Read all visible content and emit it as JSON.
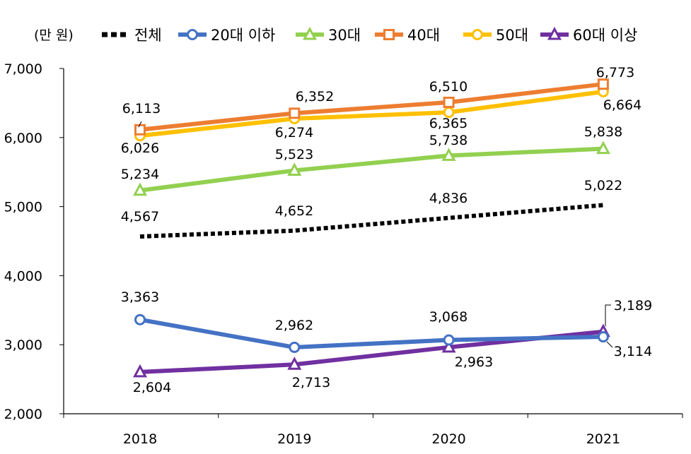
{
  "chart_data": {
    "type": "line",
    "unit_label": "(만 원)",
    "categories": [
      "2018",
      "2019",
      "2020",
      "2021"
    ],
    "ylim": [
      2000,
      7000
    ],
    "yticks": [
      "2,000",
      "3,000",
      "4,000",
      "5,000",
      "6,000",
      "7,000"
    ],
    "ytick_values": [
      2000,
      3000,
      4000,
      5000,
      6000,
      7000
    ],
    "grid": false,
    "legend_position": "top",
    "series": [
      {
        "name": "전체",
        "values": [
          4567,
          4652,
          4836,
          5022
        ],
        "labels": [
          "4,567",
          "4,652",
          "4,836",
          "5,022"
        ],
        "color": "#000000",
        "marker": "none",
        "dash": true
      },
      {
        "name": "20대 이하",
        "values": [
          3363,
          2962,
          3068,
          3114
        ],
        "labels": [
          "3,363",
          "2,962",
          "3,068",
          "3,114"
        ],
        "color": "#4472C4",
        "marker": "circle"
      },
      {
        "name": "30대",
        "values": [
          5234,
          5523,
          5738,
          5838
        ],
        "labels": [
          "5,234",
          "5,523",
          "5,738",
          "5,838"
        ],
        "color": "#92D050",
        "marker": "triangle"
      },
      {
        "name": "40대",
        "values": [
          6113,
          6352,
          6510,
          6773
        ],
        "labels": [
          "6,113",
          "6,352",
          "6,510",
          "6,773"
        ],
        "color": "#ED7D31",
        "marker": "square"
      },
      {
        "name": "50대",
        "values": [
          6026,
          6274,
          6365,
          6664
        ],
        "labels": [
          "6,026",
          "6,274",
          "6,365",
          "6,664"
        ],
        "color": "#FFC000",
        "marker": "circle"
      },
      {
        "name": "60대 이상",
        "values": [
          2604,
          2713,
          2963,
          3189
        ],
        "labels": [
          "2,604",
          "2,713",
          "2,963",
          "3,189"
        ],
        "color": "#7030A0",
        "marker": "triangle"
      }
    ]
  }
}
